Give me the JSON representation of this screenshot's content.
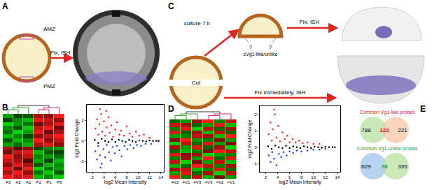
{
  "chart_data": [
    {
      "type": "heatmap",
      "columns": [
        "A3",
        "A2",
        "A1",
        "P2",
        "P1",
        "P3"
      ],
      "tick_labels": "x",
      "cells": [
        [
          0.9,
          0.7,
          0.8,
          -0.8,
          -0.6,
          -0.9
        ],
        [
          0.6,
          0.9,
          0.5,
          -0.5,
          -0.9,
          -0.4
        ],
        [
          0.8,
          0.4,
          0.9,
          -0.9,
          -0.5,
          -0.7
        ],
        [
          0.5,
          0.8,
          0.6,
          -0.4,
          -0.8,
          -0.6
        ],
        [
          0.7,
          0.6,
          0.3,
          -0.7,
          -0.3,
          -0.8
        ],
        [
          0.9,
          0.5,
          0.7,
          -0.6,
          -0.7,
          -0.5
        ],
        [
          0.4,
          0.7,
          0.8,
          -0.8,
          -0.4,
          -0.3
        ],
        [
          0.6,
          0.3,
          0.5,
          -0.3,
          -0.6,
          -0.7
        ],
        [
          -0.7,
          -0.5,
          -0.8,
          0.6,
          0.8,
          0.5
        ],
        [
          -0.4,
          -0.8,
          -0.6,
          0.9,
          0.5,
          0.7
        ],
        [
          -0.8,
          -0.6,
          -0.3,
          0.5,
          0.7,
          0.9
        ],
        [
          -0.5,
          -0.9,
          -0.7,
          0.8,
          0.4,
          0.6
        ],
        [
          -0.6,
          -0.4,
          -0.9,
          0.7,
          0.9,
          0.4
        ],
        [
          -0.9,
          -0.7,
          -0.5,
          0.4,
          0.6,
          0.8
        ],
        [
          -0.3,
          -0.6,
          -0.8,
          0.8,
          0.7,
          0.5
        ],
        [
          -0.7,
          -0.3,
          -0.4,
          0.6,
          0.5,
          0.9
        ]
      ]
    },
    {
      "type": "scatter",
      "xlabel": "log2 Mean Intensity",
      "ylabel": "log2 Fold Change",
      "grid": false,
      "marker": "circle",
      "xlim": [
        1,
        14.5
      ],
      "xticks": [
        2,
        4,
        6,
        8,
        10,
        12,
        14
      ],
      "ylim": [
        -3,
        3.5
      ],
      "yticks": [
        -2,
        0,
        2
      ],
      "series": [
        {
          "color": "#ff2020",
          "x": [
            2.5,
            2.8,
            3.0,
            3.2,
            3.5,
            3.7,
            4.0,
            4.2,
            4.5,
            4.8,
            5.0,
            5.3,
            5.6,
            6.0,
            6.3,
            6.7,
            7.0,
            7.5,
            8.0,
            8.5,
            9.0,
            9.6,
            10.2,
            11.0,
            12.0,
            3.3,
            4.4
          ],
          "y": [
            1.2,
            2.1,
            0.6,
            1.6,
            2.6,
            0.9,
            1.9,
            0.5,
            1.3,
            2.3,
            0.8,
            1.5,
            0.4,
            1.1,
            1.8,
            0.6,
            1.0,
            0.5,
            1.4,
            0.7,
            0.4,
            0.9,
            0.5,
            0.6,
            0.3,
            3.1,
            2.9
          ]
        },
        {
          "color": "#2040ff",
          "x": [
            2.5,
            2.8,
            3.0,
            3.3,
            3.6,
            3.9,
            4.2,
            4.5,
            4.9,
            5.2,
            5.5,
            5.9,
            6.3,
            6.7,
            7.1,
            7.6,
            8.1,
            8.6,
            9.2,
            9.8,
            10.5,
            11.3,
            12.3,
            3.4
          ],
          "y": [
            -1.0,
            -1.8,
            -0.5,
            -1.4,
            -2.2,
            -0.8,
            -1.6,
            -0.4,
            -1.1,
            -1.9,
            -0.6,
            -1.2,
            -0.5,
            -0.9,
            -1.5,
            -0.5,
            -0.8,
            -0.4,
            -0.7,
            -0.4,
            -0.5,
            -0.3,
            -0.3,
            -2.6
          ]
        },
        {
          "color": "#000000",
          "x": [
            2.4,
            3.0,
            3.6,
            4.2,
            4.8,
            5.4,
            6.0,
            6.6,
            7.2,
            7.8,
            8.4,
            9.0,
            9.6,
            10.2,
            10.8,
            11.4,
            12.0,
            12.6,
            13.2,
            13.6
          ],
          "y": [
            0.1,
            -0.2,
            0.2,
            0.0,
            -0.1,
            0.15,
            -0.1,
            0.1,
            0.0,
            -0.1,
            0.1,
            0.0,
            -0.1,
            0.05,
            0.0,
            -0.05,
            0.05,
            0.0,
            0.0,
            0.0
          ]
        }
      ]
    },
    {
      "type": "heatmap",
      "columns": [
        "≠V2",
        "≠V1",
        "≠V3",
        "=V3",
        "=V2",
        "=V1"
      ],
      "tick_labels": "x",
      "cells": [
        [
          0.8,
          -0.5,
          0.6,
          -0.7,
          0.4,
          -0.6
        ],
        [
          -0.6,
          0.7,
          -0.4,
          0.5,
          -0.8,
          0.6
        ],
        [
          0.5,
          0.6,
          -0.7,
          -0.5,
          0.7,
          -0.4
        ],
        [
          -0.7,
          -0.4,
          0.8,
          0.6,
          -0.5,
          0.5
        ],
        [
          0.6,
          -0.8,
          0.4,
          -0.6,
          0.6,
          -0.7
        ],
        [
          -0.5,
          0.5,
          -0.6,
          0.8,
          -0.4,
          0.7
        ],
        [
          0.7,
          0.4,
          0.5,
          -0.8,
          -0.6,
          -0.5
        ],
        [
          -0.4,
          -0.7,
          -0.5,
          0.4,
          0.8,
          0.6
        ],
        [
          0.5,
          -0.6,
          0.7,
          -0.4,
          0.5,
          -0.8
        ],
        [
          -0.8,
          0.6,
          -0.4,
          0.7,
          -0.6,
          0.4
        ],
        [
          0.4,
          0.8,
          -0.6,
          -0.5,
          0.4,
          -0.6
        ],
        [
          -0.6,
          -0.5,
          0.6,
          0.5,
          -0.7,
          0.8
        ],
        [
          0.7,
          -0.4,
          0.5,
          -0.7,
          0.6,
          -0.4
        ],
        [
          -0.5,
          0.7,
          -0.8,
          0.6,
          -0.4,
          0.5
        ],
        [
          0.6,
          0.5,
          -0.4,
          -0.6,
          0.7,
          -0.7
        ],
        [
          -0.4,
          -0.6,
          0.5,
          0.8,
          -0.5,
          0.6
        ]
      ]
    },
    {
      "type": "scatter",
      "xlabel": "log2 Mean Intensity",
      "ylabel": "log2 Fold Change",
      "grid": false,
      "marker": "circle",
      "xlim": [
        1,
        14.5
      ],
      "xticks": [
        2,
        4,
        6,
        8,
        10,
        12,
        14
      ],
      "ylim": [
        -1.5,
        2.5
      ],
      "yticks": [
        -1,
        0,
        1,
        2
      ],
      "series": [
        {
          "color": "#ff2020",
          "x": [
            2.5,
            2.8,
            3.0,
            3.2,
            3.5,
            3.8,
            4.1,
            4.4,
            4.8,
            5.2,
            5.6,
            6.0,
            6.5,
            7.0,
            7.6,
            8.2,
            9.0,
            10.0,
            11.0,
            3.4
          ],
          "y": [
            0.8,
            1.5,
            0.4,
            1.1,
            2.0,
            0.6,
            1.3,
            0.35,
            0.9,
            0.5,
            0.7,
            0.3,
            0.5,
            0.3,
            0.4,
            0.25,
            0.3,
            0.2,
            0.2,
            2.3
          ]
        },
        {
          "color": "#2040ff",
          "x": [
            2.5,
            2.8,
            3.1,
            3.4,
            3.8,
            4.2,
            4.6,
            5.0,
            5.5,
            6.0,
            6.6,
            7.2,
            8.0,
            9.0,
            10.0,
            11.0,
            12.0
          ],
          "y": [
            -0.5,
            -0.9,
            -0.3,
            -0.7,
            -1.1,
            -0.4,
            -0.6,
            -0.3,
            -0.5,
            -0.25,
            -0.35,
            -0.2,
            -0.25,
            -0.2,
            -0.15,
            -0.15,
            -0.1
          ]
        },
        {
          "color": "#000000",
          "x": [
            2.4,
            3.0,
            3.6,
            4.2,
            4.8,
            5.4,
            6.0,
            6.6,
            7.2,
            7.8,
            8.4,
            9.0,
            9.6,
            10.2,
            10.8,
            11.4,
            12.0,
            12.6,
            13.2,
            13.6
          ],
          "y": [
            0.05,
            -0.1,
            0.1,
            0.0,
            -0.05,
            0.08,
            -0.05,
            0.05,
            0.0,
            -0.05,
            0.05,
            0.0,
            -0.05,
            0.03,
            0.0,
            -0.03,
            0.03,
            0.0,
            0.0,
            0.0
          ]
        }
      ]
    }
  ],
  "diagram": {
    "panels": [
      "A",
      "B",
      "C",
      "D",
      "E"
    ],
    "A": {
      "regions": [
        "AMZ",
        "PMZ"
      ],
      "step": "Fix, ISH"
    },
    "C": {
      "cut": "Cut",
      "culture": "culture 7 h",
      "fix_after": "Fix, ISH",
      "unknown": [
        "?",
        "?"
      ],
      "question": "cVg1-like/unlike",
      "fix_now": "Fix immediately, ISH"
    },
    "E": {
      "venns": [
        {
          "title": "Common Vg1-like probes",
          "color": "#e41a1c",
          "counts": [
            788,
            122,
            221
          ]
        },
        {
          "title": "Common Vg1-unlike probes",
          "color": "#2ca02c",
          "counts": [
            629,
            78,
            335
          ]
        }
      ]
    }
  }
}
